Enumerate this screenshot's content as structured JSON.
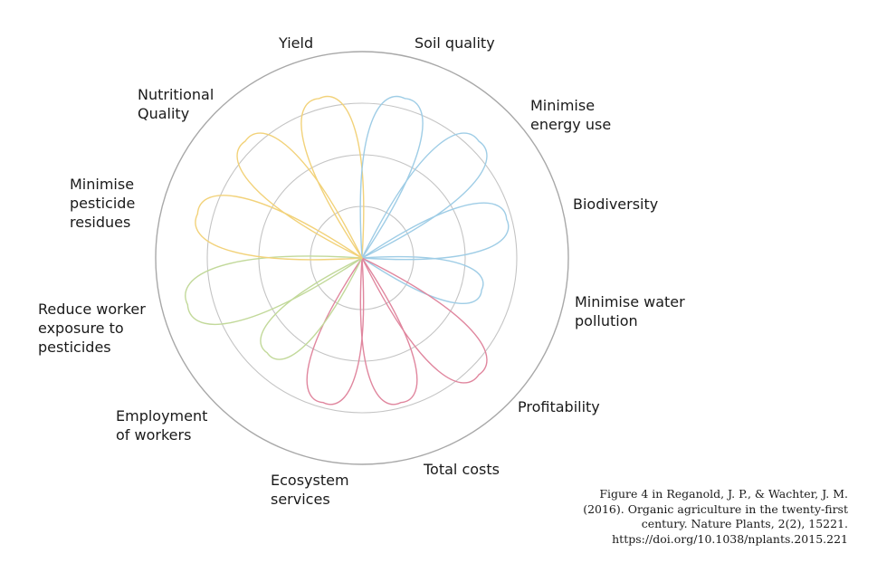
{
  "chart_data": {
    "type": "polar-petal",
    "title": "",
    "max": 4,
    "rings": [
      1,
      2,
      3,
      4
    ],
    "colors": {
      "yellow": "#f2d27a",
      "blue": "#9fcde6",
      "red": "#e0869e",
      "green": "#c2d99a"
    },
    "categories": [
      {
        "name": "Yield",
        "value": 3.2,
        "color": "yellow"
      },
      {
        "name": "Soil quality",
        "value": 3.2,
        "color": "blue"
      },
      {
        "name": "Minimise energy use",
        "value": 3.2,
        "color": "blue"
      },
      {
        "name": "Biodiversity",
        "value": 2.9,
        "color": "blue"
      },
      {
        "name": "Minimise water pollution",
        "value": 2.4,
        "color": "blue"
      },
      {
        "name": "Profitability",
        "value": 3.2,
        "color": "red"
      },
      {
        "name": "Total costs",
        "value": 2.9,
        "color": "red"
      },
      {
        "name": "Ecosystem services",
        "value": 2.9,
        "color": "red"
      },
      {
        "name": "Employment of workers",
        "value": 2.6,
        "color": "green"
      },
      {
        "name": "Reduce worker exposure to pesticides",
        "value": 3.5,
        "color": "green"
      },
      {
        "name": "Minimise pesticide residues",
        "value": 3.3,
        "color": "yellow"
      },
      {
        "name": "Nutritional Quality",
        "value": 3.2,
        "color": "yellow"
      }
    ]
  },
  "labels": {
    "yield": "Yield",
    "soil_quality": "Soil quality",
    "energy": "Minimise\nenergy use",
    "biodiversity": "Biodiversity",
    "water": "Minimise water\npollution",
    "profitability": "Profitability",
    "total_costs": "Total costs",
    "ecosystem": "Ecosystem\nservices",
    "employment": "Employment\nof workers",
    "exposure": "Reduce worker\nexposure to\npesticides",
    "residues": "Minimise\npesticide\nresidues",
    "nutritional": "Nutritional\nQuality"
  },
  "citation": {
    "line1": "Figure 4 in Reganold, J. P., & Wachter, J. M.",
    "line2": "(2016). Organic agriculture in the twenty-first",
    "line3": "century. Nature Plants, 2(2), 15221.",
    "line4": "https://doi.org/10.1038/nplants.2015.221"
  }
}
